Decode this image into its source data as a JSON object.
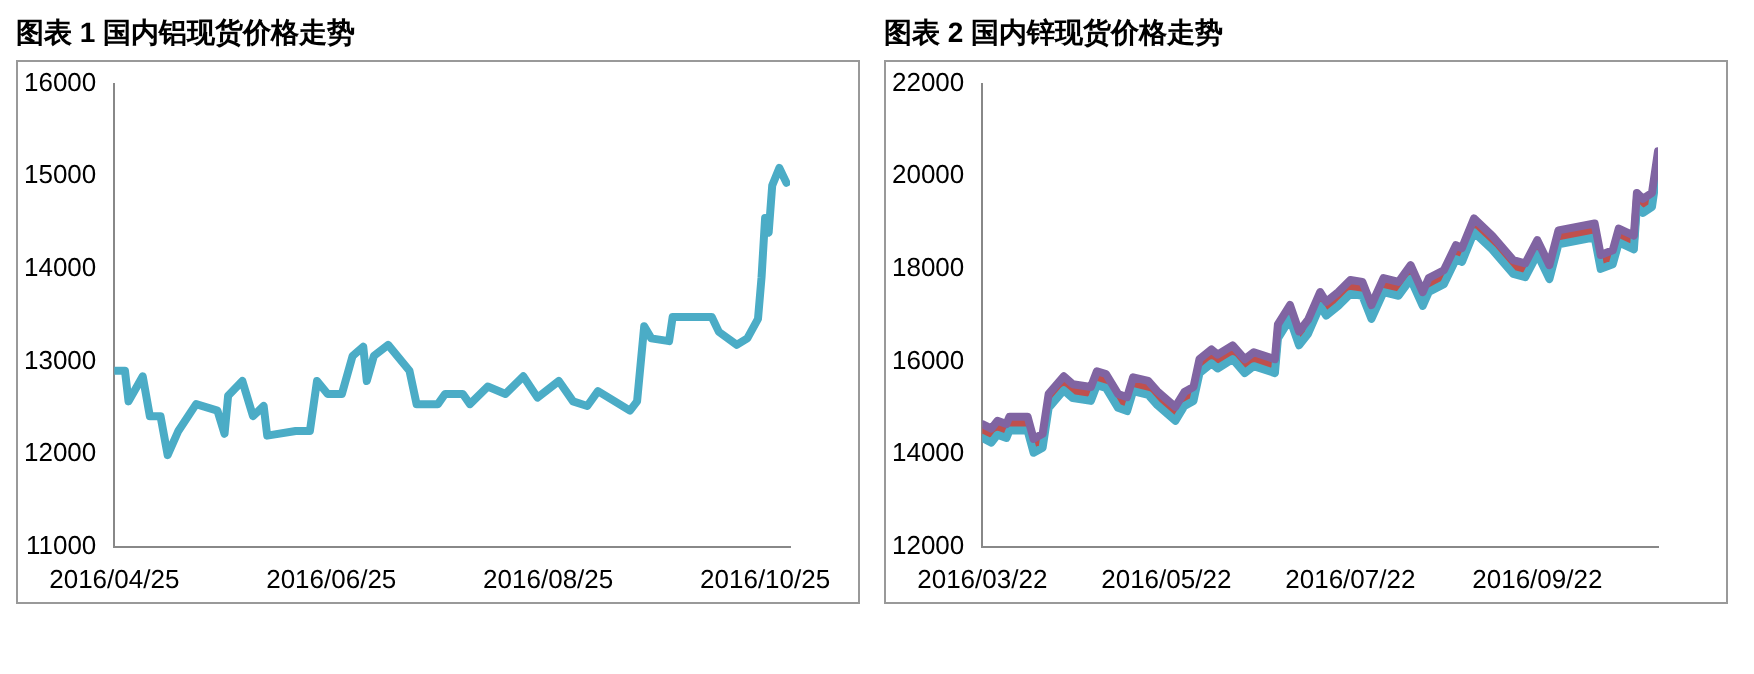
{
  "chart_data": [
    {
      "type": "line",
      "title": "图表 1  国内铝现货价格走势",
      "x": [
        "2016-04-25",
        "2016-04-28",
        "2016-04-29",
        "2016-05-03",
        "2016-05-05",
        "2016-05-08",
        "2016-05-10",
        "2016-05-13",
        "2016-05-18",
        "2016-05-24",
        "2016-05-26",
        "2016-05-27",
        "2016-05-31",
        "2016-06-03",
        "2016-06-06",
        "2016-06-07",
        "2016-06-15",
        "2016-06-19",
        "2016-06-21",
        "2016-06-24",
        "2016-06-28",
        "2016-07-01",
        "2016-07-04",
        "2016-07-05",
        "2016-07-07",
        "2016-07-11",
        "2016-07-17",
        "2016-07-19",
        "2016-07-25",
        "2016-07-27",
        "2016-08-01",
        "2016-08-03",
        "2016-08-08",
        "2016-08-13",
        "2016-08-18",
        "2016-08-22",
        "2016-08-28",
        "2016-09-01",
        "2016-09-05",
        "2016-09-08",
        "2016-09-17",
        "2016-09-19",
        "2016-09-21",
        "2016-09-23",
        "2016-09-28",
        "2016-09-29",
        "2016-10-10",
        "2016-10-12",
        "2016-10-17",
        "2016-10-20",
        "2016-10-23",
        "2016-10-24",
        "2016-10-25",
        "2016-10-26",
        "2016-10-27",
        "2016-10-29",
        "2016-10-31"
      ],
      "series": [
        {
          "color": "#4bacc6",
          "values": [
            12900,
            12900,
            12570,
            12840,
            12410,
            12410,
            11990,
            12250,
            12540,
            12470,
            12220,
            12630,
            12790,
            12410,
            12520,
            12200,
            12250,
            12250,
            12790,
            12650,
            12650,
            13060,
            13160,
            12790,
            13060,
            13180,
            12900,
            12540,
            12540,
            12650,
            12650,
            12540,
            12730,
            12650,
            12840,
            12610,
            12790,
            12570,
            12520,
            12680,
            12470,
            12570,
            13380,
            13250,
            13220,
            13480,
            13480,
            13320,
            13180,
            13250,
            13460,
            13910,
            14550,
            14390,
            14900,
            15090,
            14930
          ]
        }
      ],
      "xlim": [
        "2016-04-25",
        "2016-11-01"
      ],
      "xticks": [
        {
          "value": "2016-04-25",
          "label": "2016/04/25"
        },
        {
          "value": "2016-06-25",
          "label": "2016/06/25"
        },
        {
          "value": "2016-08-25",
          "label": "2016/08/25"
        },
        {
          "value": "2016-10-25",
          "label": "2016/10/25"
        }
      ],
      "ylim": [
        11000,
        16000
      ],
      "yticks": [
        11000,
        12000,
        13000,
        14000,
        15000,
        16000
      ],
      "grid": false,
      "legend": false,
      "marker": "none",
      "line_style": "solid"
    },
    {
      "type": "line",
      "title": "图表 2  国内锌现货价格走势",
      "x": [
        "2016-03-22",
        "2016-03-25",
        "2016-03-27",
        "2016-03-30",
        "2016-03-31",
        "2016-04-06",
        "2016-04-08",
        "2016-04-11",
        "2016-04-13",
        "2016-04-18",
        "2016-04-21",
        "2016-04-27",
        "2016-04-29",
        "2016-05-02",
        "2016-05-06",
        "2016-05-09",
        "2016-05-11",
        "2016-05-16",
        "2016-05-19",
        "2016-05-25",
        "2016-05-28",
        "2016-05-31",
        "2016-06-02",
        "2016-06-06",
        "2016-06-08",
        "2016-06-13",
        "2016-06-17",
        "2016-06-20",
        "2016-06-27",
        "2016-06-28",
        "2016-07-02",
        "2016-07-05",
        "2016-07-08",
        "2016-07-12",
        "2016-07-14",
        "2016-07-18",
        "2016-07-22",
        "2016-07-26",
        "2016-07-29",
        "2016-08-02",
        "2016-08-07",
        "2016-08-11",
        "2016-08-15",
        "2016-08-17",
        "2016-08-22",
        "2016-08-26",
        "2016-08-28",
        "2016-09-01",
        "2016-09-07",
        "2016-09-14",
        "2016-09-18",
        "2016-09-22",
        "2016-09-26",
        "2016-09-29",
        "2016-10-11",
        "2016-10-13",
        "2016-10-17",
        "2016-10-19",
        "2016-10-24",
        "2016-10-25",
        "2016-10-27",
        "2016-10-30",
        "2016-11-01"
      ],
      "series": [
        {
          "color": "#8064a2",
          "values": [
            14650,
            14550,
            14720,
            14650,
            14810,
            14810,
            14330,
            14440,
            15300,
            15680,
            15510,
            15450,
            15790,
            15730,
            15300,
            15230,
            15660,
            15580,
            15360,
            15020,
            15340,
            15450,
            16050,
            16260,
            16150,
            16350,
            16050,
            16200,
            16050,
            16800,
            17220,
            16650,
            16900,
            17500,
            17290,
            17500,
            17760,
            17720,
            17220,
            17800,
            17720,
            18080,
            17500,
            17800,
            17970,
            18510,
            18450,
            19090,
            18720,
            18190,
            18120,
            18620,
            18080,
            18830,
            18980,
            18300,
            18400,
            18870,
            18720,
            19640,
            19510,
            19640,
            20540
          ]
        },
        {
          "color": "#4bacc6",
          "values": [
            14350,
            14250,
            14420,
            14350,
            14510,
            14510,
            14030,
            14140,
            15000,
            15380,
            15210,
            15150,
            15490,
            15430,
            15000,
            14930,
            15360,
            15280,
            15060,
            14720,
            15040,
            15150,
            15750,
            15960,
            15850,
            16050,
            15750,
            15900,
            15750,
            16500,
            16920,
            16350,
            16600,
            17200,
            16990,
            17200,
            17460,
            17420,
            16920,
            17500,
            17420,
            17780,
            17200,
            17500,
            17670,
            18210,
            18150,
            18790,
            18420,
            17890,
            17820,
            18320,
            17780,
            18530,
            18680,
            18000,
            18100,
            18570,
            18420,
            19340,
            19210,
            19340,
            20240
          ]
        },
        {
          "color": "#c0504d",
          "values": [
            14500,
            14400,
            14570,
            14500,
            14660,
            14660,
            14180,
            14290,
            15150,
            15530,
            15360,
            15300,
            15640,
            15580,
            15150,
            15080,
            15510,
            15430,
            15210,
            14870,
            15190,
            15300,
            15900,
            16110,
            16000,
            16200,
            15900,
            16050,
            15900,
            16650,
            17070,
            16500,
            16750,
            17350,
            17140,
            17350,
            17610,
            17570,
            17070,
            17650,
            17570,
            17930,
            17350,
            17650,
            17820,
            18360,
            18300,
            18940,
            18570,
            18040,
            17970,
            18470,
            17930,
            18680,
            18830,
            18150,
            18250,
            18720,
            18570,
            19490,
            19360,
            19490,
            20390
          ]
        }
      ],
      "xlim": [
        "2016-03-22",
        "2016-11-01"
      ],
      "xticks": [
        {
          "value": "2016-03-22",
          "label": "2016/03/22"
        },
        {
          "value": "2016-05-22",
          "label": "2016/05/22"
        },
        {
          "value": "2016-07-22",
          "label": "2016/07/22"
        },
        {
          "value": "2016-09-22",
          "label": "2016/09/22"
        }
      ],
      "ylim": [
        12000,
        22000
      ],
      "yticks": [
        12000,
        14000,
        16000,
        18000,
        20000,
        22000
      ],
      "grid": false,
      "legend": false,
      "marker": "none",
      "line_style": "solid"
    }
  ]
}
